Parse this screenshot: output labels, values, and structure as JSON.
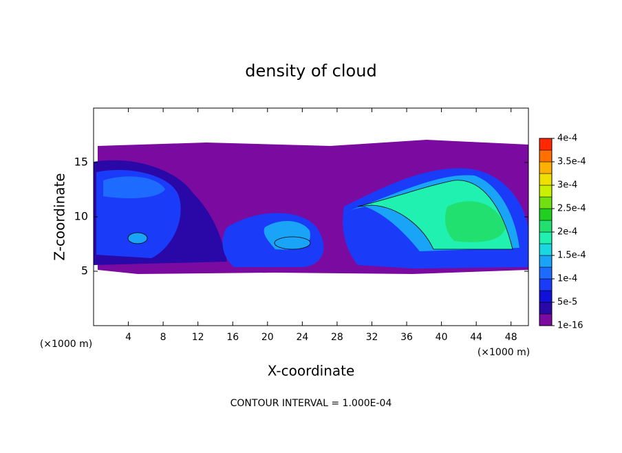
{
  "chart_data": {
    "type": "contour",
    "title": "density of cloud",
    "x_label": "X-coordinate",
    "y_label": "Z-coordinate",
    "x_unit_left": "(×1000 m)",
    "x_unit_right": "(×1000 m)",
    "footnote": "CONTOUR INTERVAL = 1.000E-04",
    "xlim": [
      0,
      50
    ],
    "xticks": [
      4,
      8,
      12,
      16,
      20,
      24,
      28,
      32,
      36,
      40,
      44,
      48
    ],
    "ylim": [
      0,
      20
    ],
    "yticks": [
      5,
      10,
      15
    ],
    "clim": [
      0,
      0.0004
    ],
    "cticks": [
      {
        "value": 1e-16,
        "label": "1e-16"
      },
      {
        "value": 5e-05,
        "label": "5e-5"
      },
      {
        "value": 0.0001,
        "label": "1e-4"
      },
      {
        "value": 0.00015,
        "label": "1.5e-4"
      },
      {
        "value": 0.0002,
        "label": "2e-4"
      },
      {
        "value": 0.00025,
        "label": "2.5e-4"
      },
      {
        "value": 0.0003,
        "label": "3e-4"
      },
      {
        "value": 0.00035,
        "label": "3.5e-4"
      },
      {
        "value": 0.0004,
        "label": "4e-4"
      }
    ],
    "colorbar_colors": [
      "#7a0aa0",
      "#2a08a8",
      "#1010d8",
      "#1a3cf8",
      "#1e6cff",
      "#1aa4f8",
      "#18d8e0",
      "#20f0b0",
      "#22e070",
      "#20d020",
      "#70e010",
      "#c8f000",
      "#f0e000",
      "#ffb000",
      "#ff7000",
      "#ff2800"
    ]
  }
}
